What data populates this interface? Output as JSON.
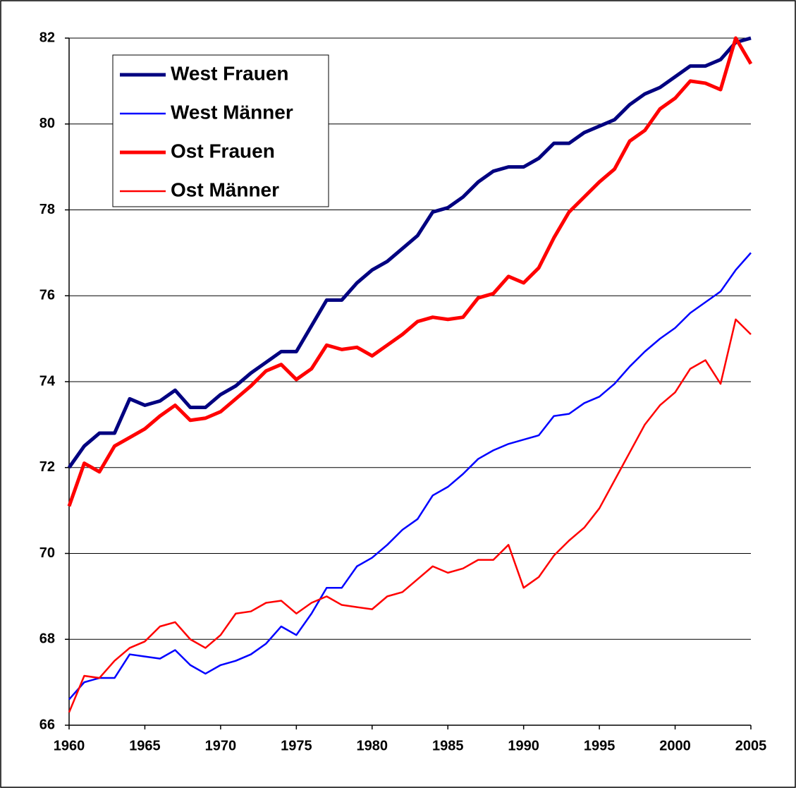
{
  "chart_data": {
    "type": "line",
    "x": [
      1960,
      1961,
      1962,
      1963,
      1964,
      1965,
      1966,
      1967,
      1968,
      1969,
      1970,
      1971,
      1972,
      1973,
      1974,
      1975,
      1976,
      1977,
      1978,
      1979,
      1980,
      1981,
      1982,
      1983,
      1984,
      1985,
      1986,
      1987,
      1988,
      1989,
      1990,
      1991,
      1992,
      1993,
      1994,
      1995,
      1996,
      1997,
      1998,
      1999,
      2000,
      2001,
      2002,
      2003,
      2004,
      2005
    ],
    "xlim": [
      1960,
      2005
    ],
    "xticks": [
      1960,
      1965,
      1970,
      1975,
      1980,
      1985,
      1990,
      1995,
      2000,
      2005
    ],
    "ylim": [
      66,
      82
    ],
    "yticks": [
      66,
      68,
      70,
      72,
      74,
      76,
      78,
      80,
      82
    ],
    "grid": true,
    "legend": "upper left",
    "series": [
      {
        "name": "West Frauen",
        "color": "#000080",
        "line_width": 5,
        "values": [
          72.0,
          72.5,
          72.8,
          72.8,
          73.6,
          73.45,
          73.55,
          73.8,
          73.4,
          73.4,
          73.7,
          73.9,
          74.2,
          74.45,
          74.7,
          74.7,
          75.3,
          75.9,
          75.9,
          76.3,
          76.6,
          76.8,
          77.1,
          77.4,
          77.95,
          78.05,
          78.3,
          78.65,
          78.9,
          79.0,
          79.0,
          79.2,
          79.55,
          79.55,
          79.8,
          79.95,
          80.1,
          80.45,
          80.7,
          80.85,
          81.1,
          81.35,
          81.35,
          81.5,
          81.9,
          82.0
        ]
      },
      {
        "name": "West Männer",
        "color": "#0000ff",
        "line_width": 2.5,
        "values": [
          66.6,
          67.0,
          67.1,
          67.1,
          67.65,
          67.6,
          67.55,
          67.75,
          67.4,
          67.2,
          67.4,
          67.5,
          67.65,
          67.9,
          68.3,
          68.1,
          68.6,
          69.2,
          69.2,
          69.7,
          69.9,
          70.2,
          70.55,
          70.8,
          71.35,
          71.55,
          71.85,
          72.2,
          72.4,
          72.55,
          72.65,
          72.75,
          73.2,
          73.25,
          73.5,
          73.65,
          73.95,
          74.35,
          74.7,
          75.0,
          75.25,
          75.6,
          75.85,
          76.1,
          76.6,
          77.0
        ]
      },
      {
        "name": "Ost Frauen",
        "color": "#ff0000",
        "line_width": 5,
        "values": [
          71.1,
          72.1,
          71.9,
          72.5,
          72.7,
          72.9,
          73.2,
          73.45,
          73.1,
          73.15,
          73.3,
          73.6,
          73.9,
          74.25,
          74.4,
          74.05,
          74.3,
          74.85,
          74.75,
          74.8,
          74.6,
          74.85,
          75.1,
          75.4,
          75.5,
          75.45,
          75.5,
          75.95,
          76.05,
          76.45,
          76.3,
          76.65,
          77.35,
          77.95,
          78.3,
          78.65,
          78.95,
          79.6,
          79.85,
          80.35,
          80.6,
          81.0,
          80.95,
          80.8,
          82.0,
          81.4
        ]
      },
      {
        "name": "Ost Männer",
        "color": "#ff0000",
        "line_width": 2.5,
        "values": [
          66.3,
          67.15,
          67.1,
          67.5,
          67.8,
          67.95,
          68.3,
          68.4,
          68.0,
          67.8,
          68.1,
          68.6,
          68.65,
          68.85,
          68.9,
          68.6,
          68.85,
          69.0,
          68.8,
          68.75,
          68.7,
          69.0,
          69.1,
          69.4,
          69.7,
          69.55,
          69.65,
          69.85,
          69.85,
          70.2,
          69.2,
          69.45,
          69.95,
          70.3,
          70.6,
          71.05,
          71.7,
          72.35,
          73.0,
          73.45,
          73.75,
          74.3,
          74.5,
          73.95,
          75.45,
          75.1
        ]
      }
    ]
  }
}
